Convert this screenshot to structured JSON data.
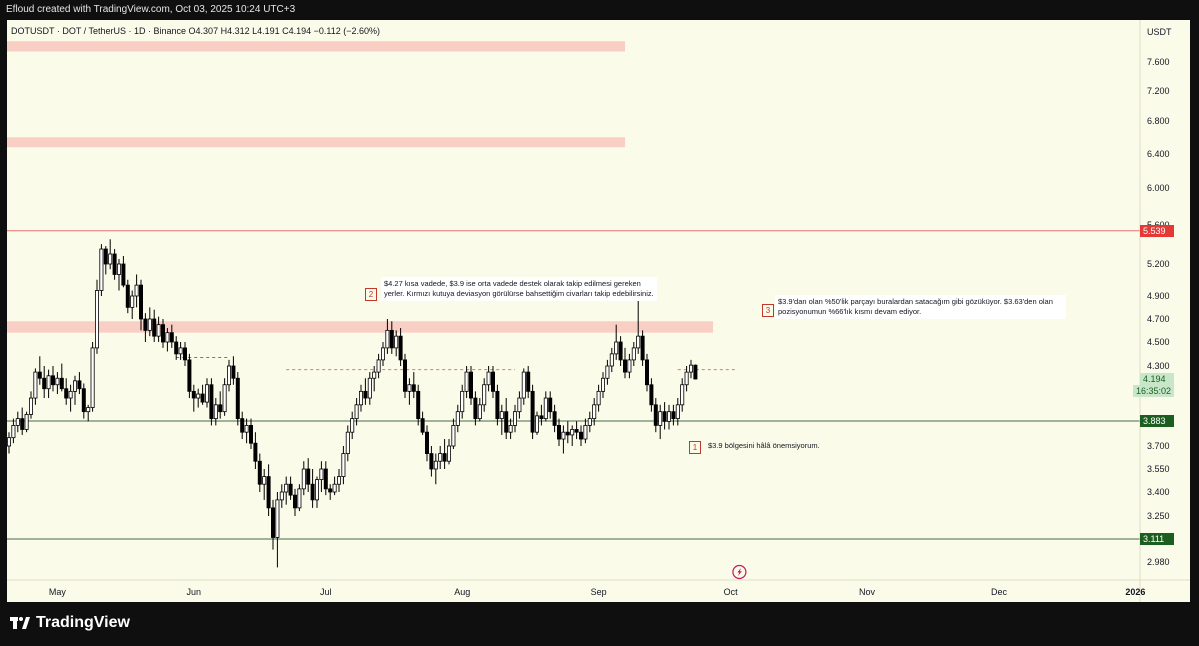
{
  "header": {
    "created_by": "Efloud created with TradingView.com, Oct 03, 2025 10:24 UTC+3"
  },
  "legend": {
    "text": "DOTUSDT · DOT / TetherUS · 1D · Binance  O4.307  H4.312  L4.191  C4.194  −0.112 (−2.60%)"
  },
  "price_axis": {
    "currency": "USDT",
    "ticks": [
      "7.600",
      "7.200",
      "6.800",
      "6.400",
      "6.000",
      "5.600",
      "5.200",
      "4.900",
      "4.700",
      "4.500",
      "4.300",
      "3.700",
      "3.550",
      "3.400",
      "3.250",
      "2.980"
    ],
    "tick_values": [
      7.6,
      7.2,
      6.8,
      6.4,
      6.0,
      5.6,
      5.2,
      4.9,
      4.7,
      4.5,
      4.3,
      3.7,
      3.55,
      3.4,
      3.25,
      2.98
    ],
    "current_price": "4.194",
    "countdown": "16:35:02",
    "level_5539": "5.539",
    "level_3883": "3.883",
    "level_3111": "3.111"
  },
  "time_axis": {
    "labels": [
      "May",
      "Jun",
      "Jul",
      "Aug",
      "Sep",
      "Oct",
      "Nov",
      "Dec",
      "2026"
    ]
  },
  "notes": {
    "n1_num": "1",
    "n1_text": "$3.9 bölgesini hâlâ önemsiyorum.",
    "n2_num": "2",
    "n2_text": "$4.27 kısa vadede, $3.9 ise orta vadede destek olarak takip edilmesi gereken yerler. Kırmızı kutuya deviasyon görülürse bahsettiğim civarları takip edebilirsiniz.",
    "n3_num": "3",
    "n3_text": "$3.9'dan olan %50'lik parçayı buralardan satacağım gibi gözüküyor. $3.63'den olan pozisyonumun %66'lık kısmı devam ediyor."
  },
  "footer": {
    "brand": "TradingView"
  },
  "colors": {
    "up": "#ffffff",
    "down": "#000000",
    "zone": "#f8c9c0",
    "resistance_line": "#e57373",
    "support_line": "#4a6a4a",
    "support_tag": "#1b5e20",
    "resistance_tag": "#e53935",
    "current_tag": "#c8e6c9"
  },
  "chart_data": {
    "type": "candlestick",
    "symbol": "DOTUSDT",
    "timeframe": "1D",
    "exchange": "Binance",
    "last_candle": {
      "open": 4.307,
      "high": 4.312,
      "low": 4.191,
      "close": 4.194,
      "change": -0.112,
      "change_pct": -2.6
    },
    "ylim": [
      2.85,
      7.9
    ],
    "horizontal_levels": [
      5.539,
      3.883,
      3.111
    ],
    "dashed_levels": [
      {
        "price": 4.27,
        "from_day": 63,
        "to_day": 115
      },
      {
        "price": 4.37,
        "from_day": 38,
        "to_day": 50
      },
      {
        "price": 4.27,
        "from_day": 152,
        "to_day": 165
      }
    ],
    "zones": [
      {
        "low": 7.75,
        "high": 7.9,
        "to_day": 140
      },
      {
        "low": 6.48,
        "high": 6.6,
        "to_day": 140
      },
      {
        "low": 4.58,
        "high": 4.68,
        "to_day": 160
      }
    ],
    "candles_start": "Apr 20, 2025",
    "month_day_index": {
      "May": 11,
      "Jun": 42,
      "Jul": 72,
      "Aug": 103,
      "Sep": 134,
      "Oct": 164,
      "Nov": 195,
      "Dec": 225,
      "2026": 256
    },
    "ohlc": [
      [
        3.7,
        3.8,
        3.65,
        3.76
      ],
      [
        3.76,
        3.9,
        3.72,
        3.85
      ],
      [
        3.85,
        3.95,
        3.8,
        3.9
      ],
      [
        3.9,
        3.98,
        3.78,
        3.82
      ],
      [
        3.82,
        3.95,
        3.8,
        3.93
      ],
      [
        3.93,
        4.1,
        3.9,
        4.05
      ],
      [
        4.05,
        4.28,
        4.0,
        4.25
      ],
      [
        4.25,
        4.38,
        4.15,
        4.2
      ],
      [
        4.2,
        4.3,
        4.05,
        4.12
      ],
      [
        4.12,
        4.27,
        4.05,
        4.22
      ],
      [
        4.22,
        4.3,
        4.1,
        4.15
      ],
      [
        4.15,
        4.25,
        4.08,
        4.2
      ],
      [
        4.2,
        4.32,
        4.1,
        4.12
      ],
      [
        4.12,
        4.2,
        4.0,
        4.05
      ],
      [
        4.05,
        4.15,
        3.95,
        4.1
      ],
      [
        4.1,
        4.22,
        4.0,
        4.18
      ],
      [
        4.18,
        4.25,
        4.08,
        4.12
      ],
      [
        4.12,
        4.16,
        3.9,
        3.95
      ],
      [
        3.95,
        4.0,
        3.88,
        3.98
      ],
      [
        3.98,
        4.5,
        3.95,
        4.45
      ],
      [
        4.45,
        5.05,
        4.4,
        4.95
      ],
      [
        4.95,
        5.4,
        4.9,
        5.35
      ],
      [
        5.35,
        5.38,
        5.1,
        5.2
      ],
      [
        5.2,
        5.45,
        5.15,
        5.3
      ],
      [
        5.3,
        5.35,
        5.05,
        5.1
      ],
      [
        5.1,
        5.25,
        4.95,
        5.2
      ],
      [
        5.2,
        5.28,
        4.98,
        5.0
      ],
      [
        5.0,
        5.05,
        4.75,
        4.8
      ],
      [
        4.8,
        4.95,
        4.7,
        4.9
      ],
      [
        4.9,
        5.1,
        4.8,
        5.0
      ],
      [
        5.0,
        5.05,
        4.6,
        4.7
      ],
      [
        4.7,
        4.75,
        4.5,
        4.6
      ],
      [
        4.6,
        4.8,
        4.55,
        4.7
      ],
      [
        4.7,
        4.78,
        4.5,
        4.55
      ],
      [
        4.55,
        4.72,
        4.5,
        4.65
      ],
      [
        4.65,
        4.7,
        4.45,
        4.5
      ],
      [
        4.5,
        4.62,
        4.42,
        4.58
      ],
      [
        4.58,
        4.65,
        4.45,
        4.5
      ],
      [
        4.5,
        4.55,
        4.35,
        4.4
      ],
      [
        4.4,
        4.5,
        4.35,
        4.45
      ],
      [
        4.45,
        4.5,
        4.3,
        4.35
      ],
      [
        4.35,
        4.4,
        4.05,
        4.1
      ],
      [
        4.1,
        4.15,
        3.95,
        4.05
      ],
      [
        4.05,
        4.12,
        3.98,
        4.08
      ],
      [
        4.08,
        4.15,
        4.0,
        4.02
      ],
      [
        4.02,
        4.2,
        3.98,
        4.15
      ],
      [
        4.15,
        4.2,
        3.85,
        3.9
      ],
      [
        3.9,
        4.05,
        3.85,
        4.0
      ],
      [
        4.0,
        4.1,
        3.9,
        3.95
      ],
      [
        3.95,
        4.2,
        3.92,
        4.15
      ],
      [
        4.15,
        4.35,
        4.1,
        4.3
      ],
      [
        4.3,
        4.38,
        4.15,
        4.2
      ],
      [
        4.2,
        4.25,
        3.85,
        3.9
      ],
      [
        3.9,
        3.95,
        3.75,
        3.8
      ],
      [
        3.8,
        3.9,
        3.72,
        3.85
      ],
      [
        3.85,
        3.9,
        3.68,
        3.72
      ],
      [
        3.72,
        3.8,
        3.55,
        3.6
      ],
      [
        3.6,
        3.65,
        3.4,
        3.45
      ],
      [
        3.45,
        3.55,
        3.35,
        3.5
      ],
      [
        3.5,
        3.58,
        3.25,
        3.3
      ],
      [
        3.3,
        3.35,
        3.05,
        3.12
      ],
      [
        3.12,
        3.4,
        2.95,
        3.35
      ],
      [
        3.35,
        3.45,
        3.3,
        3.4
      ],
      [
        3.4,
        3.5,
        3.32,
        3.45
      ],
      [
        3.45,
        3.5,
        3.35,
        3.38
      ],
      [
        3.38,
        3.42,
        3.25,
        3.3
      ],
      [
        3.3,
        3.45,
        3.28,
        3.42
      ],
      [
        3.42,
        3.6,
        3.38,
        3.55
      ],
      [
        3.55,
        3.62,
        3.4,
        3.45
      ],
      [
        3.45,
        3.55,
        3.3,
        3.35
      ],
      [
        3.35,
        3.5,
        3.3,
        3.48
      ],
      [
        3.48,
        3.6,
        3.4,
        3.55
      ],
      [
        3.55,
        3.6,
        3.38,
        3.42
      ],
      [
        3.42,
        3.45,
        3.35,
        3.4
      ],
      [
        3.4,
        3.5,
        3.38,
        3.45
      ],
      [
        3.45,
        3.55,
        3.4,
        3.5
      ],
      [
        3.5,
        3.7,
        3.45,
        3.65
      ],
      [
        3.65,
        3.85,
        3.6,
        3.8
      ],
      [
        3.8,
        3.95,
        3.75,
        3.9
      ],
      [
        3.9,
        4.05,
        3.85,
        4.0
      ],
      [
        4.0,
        4.15,
        3.95,
        4.1
      ],
      [
        4.1,
        4.2,
        4.0,
        4.05
      ],
      [
        4.05,
        4.25,
        4.0,
        4.2
      ],
      [
        4.2,
        4.3,
        4.1,
        4.25
      ],
      [
        4.25,
        4.4,
        4.2,
        4.35
      ],
      [
        4.35,
        4.5,
        4.3,
        4.45
      ],
      [
        4.45,
        4.7,
        4.4,
        4.6
      ],
      [
        4.6,
        4.68,
        4.4,
        4.45
      ],
      [
        4.45,
        4.6,
        4.38,
        4.55
      ],
      [
        4.55,
        4.62,
        4.3,
        4.35
      ],
      [
        4.35,
        4.4,
        4.05,
        4.1
      ],
      [
        4.1,
        4.2,
        4.0,
        4.15
      ],
      [
        4.15,
        4.25,
        4.05,
        4.1
      ],
      [
        4.1,
        4.15,
        3.85,
        3.9
      ],
      [
        3.9,
        3.95,
        3.78,
        3.8
      ],
      [
        3.8,
        3.85,
        3.6,
        3.65
      ],
      [
        3.65,
        3.7,
        3.5,
        3.55
      ],
      [
        3.55,
        3.65,
        3.45,
        3.6
      ],
      [
        3.6,
        3.7,
        3.55,
        3.65
      ],
      [
        3.65,
        3.75,
        3.55,
        3.6
      ],
      [
        3.6,
        3.75,
        3.58,
        3.7
      ],
      [
        3.7,
        3.9,
        3.68,
        3.85
      ],
      [
        3.85,
        4.0,
        3.8,
        3.95
      ],
      [
        3.95,
        4.15,
        3.9,
        4.1
      ],
      [
        4.1,
        4.3,
        4.05,
        4.25
      ],
      [
        4.25,
        4.3,
        4.0,
        4.05
      ],
      [
        4.05,
        4.1,
        3.85,
        3.9
      ],
      [
        3.9,
        4.05,
        3.88,
        4.0
      ],
      [
        4.0,
        4.2,
        3.95,
        4.15
      ],
      [
        4.15,
        4.3,
        4.1,
        4.25
      ],
      [
        4.25,
        4.3,
        4.05,
        4.1
      ],
      [
        4.1,
        4.15,
        3.85,
        3.9
      ],
      [
        3.9,
        4.0,
        3.78,
        3.95
      ],
      [
        3.95,
        4.05,
        3.75,
        3.8
      ],
      [
        3.8,
        3.9,
        3.75,
        3.85
      ],
      [
        3.85,
        4.0,
        3.8,
        3.95
      ],
      [
        3.95,
        4.1,
        3.9,
        4.05
      ],
      [
        4.05,
        4.28,
        4.0,
        4.25
      ],
      [
        4.25,
        4.3,
        4.05,
        4.1
      ],
      [
        4.1,
        4.15,
        3.75,
        3.8
      ],
      [
        3.8,
        3.95,
        3.78,
        3.92
      ],
      [
        3.92,
        4.0,
        3.85,
        3.9
      ],
      [
        3.9,
        4.1,
        3.88,
        4.05
      ],
      [
        4.05,
        4.1,
        3.9,
        3.95
      ],
      [
        3.95,
        4.0,
        3.8,
        3.85
      ],
      [
        3.85,
        3.9,
        3.7,
        3.75
      ],
      [
        3.75,
        3.85,
        3.65,
        3.8
      ],
      [
        3.8,
        3.88,
        3.72,
        3.78
      ],
      [
        3.78,
        3.85,
        3.7,
        3.82
      ],
      [
        3.82,
        3.88,
        3.75,
        3.8
      ],
      [
        3.8,
        3.85,
        3.7,
        3.75
      ],
      [
        3.75,
        3.9,
        3.72,
        3.85
      ],
      [
        3.85,
        3.95,
        3.8,
        3.9
      ],
      [
        3.9,
        4.05,
        3.85,
        4.0
      ],
      [
        4.0,
        4.15,
        3.95,
        4.1
      ],
      [
        4.1,
        4.25,
        4.05,
        4.2
      ],
      [
        4.2,
        4.35,
        4.15,
        4.3
      ],
      [
        4.3,
        4.45,
        4.25,
        4.4
      ],
      [
        4.4,
        4.65,
        4.35,
        4.5
      ],
      [
        4.5,
        4.55,
        4.3,
        4.35
      ],
      [
        4.35,
        4.45,
        4.2,
        4.25
      ],
      [
        4.25,
        4.4,
        4.2,
        4.35
      ],
      [
        4.35,
        4.5,
        4.3,
        4.45
      ],
      [
        4.45,
        4.9,
        4.4,
        4.55
      ],
      [
        4.55,
        4.6,
        4.3,
        4.35
      ],
      [
        4.35,
        4.4,
        4.1,
        4.15
      ],
      [
        4.15,
        4.2,
        3.95,
        4.0
      ],
      [
        4.0,
        4.05,
        3.8,
        3.85
      ],
      [
        3.85,
        4.0,
        3.75,
        3.95
      ],
      [
        3.95,
        4.02,
        3.82,
        3.88
      ],
      [
        3.88,
        4.0,
        3.82,
        3.95
      ],
      [
        3.95,
        4.0,
        3.85,
        3.9
      ],
      [
        3.9,
        4.05,
        3.85,
        4.0
      ],
      [
        4.0,
        4.2,
        3.95,
        4.15
      ],
      [
        4.15,
        4.3,
        4.1,
        4.25
      ],
      [
        4.25,
        4.35,
        4.2,
        4.307
      ],
      [
        4.307,
        4.312,
        4.191,
        4.194
      ]
    ]
  }
}
